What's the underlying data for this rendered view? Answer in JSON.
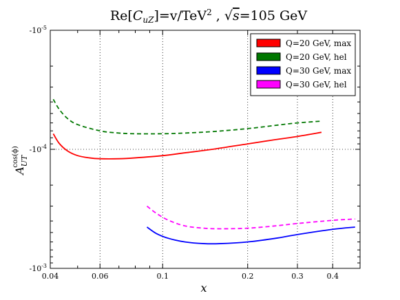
{
  "chart_data": {
    "type": "line",
    "title_parts": {
      "re": "Re[",
      "c": "C",
      "c_sub": "uZ",
      "eq_v": "]=v/TeV",
      "sup2": "2",
      "sep": " , ",
      "sqrt": "√",
      "s": "s",
      "energy": "=105 GeV"
    },
    "xlabel": "x",
    "ylabel": {
      "main": "A",
      "sup": "cos(ϕ)",
      "sub": "UT"
    },
    "x_scale": "log",
    "y_scale": "log",
    "y_inverted_negative": true,
    "xlim": [
      0.04,
      0.5
    ],
    "ylim_magnitude": [
      1e-05,
      0.001
    ],
    "x_ticks": [
      {
        "value": 0.04,
        "label": "0.04"
      },
      {
        "value": 0.06,
        "label": "0.06"
      },
      {
        "value": 0.1,
        "label": "0.1"
      },
      {
        "value": 0.2,
        "label": "0.2"
      },
      {
        "value": 0.3,
        "label": "0.3"
      },
      {
        "value": 0.4,
        "label": "0.4"
      }
    ],
    "x_grid": [
      0.06,
      0.1,
      0.2,
      0.3,
      0.4
    ],
    "y_ticks": [
      {
        "magnitude": 1e-05,
        "label_base": "-10",
        "label_exp": "-5"
      },
      {
        "magnitude": 0.0001,
        "label_base": "-10",
        "label_exp": "-4"
      },
      {
        "magnitude": 0.001,
        "label_base": "-10",
        "label_exp": "-3"
      }
    ],
    "grid": true,
    "legend_position": "top-right",
    "series": [
      {
        "name": "Q=20 GeV, max",
        "color": "#ff0000",
        "dash": "solid",
        "x": [
          0.041,
          0.043,
          0.046,
          0.05,
          0.055,
          0.06,
          0.07,
          0.08,
          0.1,
          0.12,
          0.15,
          0.2,
          0.25,
          0.3,
          0.365
        ],
        "y": [
          -7.4e-05,
          -8.9e-05,
          -0.000103,
          -0.000113,
          -0.000118,
          -0.00012,
          -0.00012,
          -0.000118,
          -0.000113,
          -0.000107,
          -0.0001,
          -9e-05,
          -8.3e-05,
          -7.8e-05,
          -7.2e-05
        ]
      },
      {
        "name": "Q=20 GeV, hel",
        "color": "#007700",
        "dash": "dashed",
        "x": [
          0.041,
          0.043,
          0.046,
          0.05,
          0.06,
          0.07,
          0.08,
          0.1,
          0.12,
          0.15,
          0.2,
          0.25,
          0.3,
          0.365
        ],
        "y": [
          -3.8e-05,
          -4.6e-05,
          -5.5e-05,
          -6.2e-05,
          -7e-05,
          -7.3e-05,
          -7.4e-05,
          -7.4e-05,
          -7.3e-05,
          -7.1e-05,
          -6.7e-05,
          -6.3e-05,
          -6e-05,
          -5.8e-05
        ]
      },
      {
        "name": "Q=30 GeV, max",
        "color": "#0000ff",
        "dash": "solid",
        "x": [
          0.088,
          0.095,
          0.105,
          0.12,
          0.14,
          0.16,
          0.2,
          0.25,
          0.3,
          0.4,
          0.48
        ],
        "y": [
          -0.00045,
          -0.00051,
          -0.00056,
          -0.0006,
          -0.00062,
          -0.00062,
          -0.0006,
          -0.00056,
          -0.00052,
          -0.00047,
          -0.00045
        ]
      },
      {
        "name": "Q=30 GeV, hel",
        "color": "#ff00ff",
        "dash": "dashed",
        "x": [
          0.088,
          0.095,
          0.105,
          0.12,
          0.14,
          0.16,
          0.2,
          0.25,
          0.3,
          0.4,
          0.48
        ],
        "y": [
          -0.0003,
          -0.000345,
          -0.000395,
          -0.00044,
          -0.00046,
          -0.000465,
          -0.00046,
          -0.00044,
          -0.00042,
          -0.000395,
          -0.000385
        ]
      }
    ]
  }
}
